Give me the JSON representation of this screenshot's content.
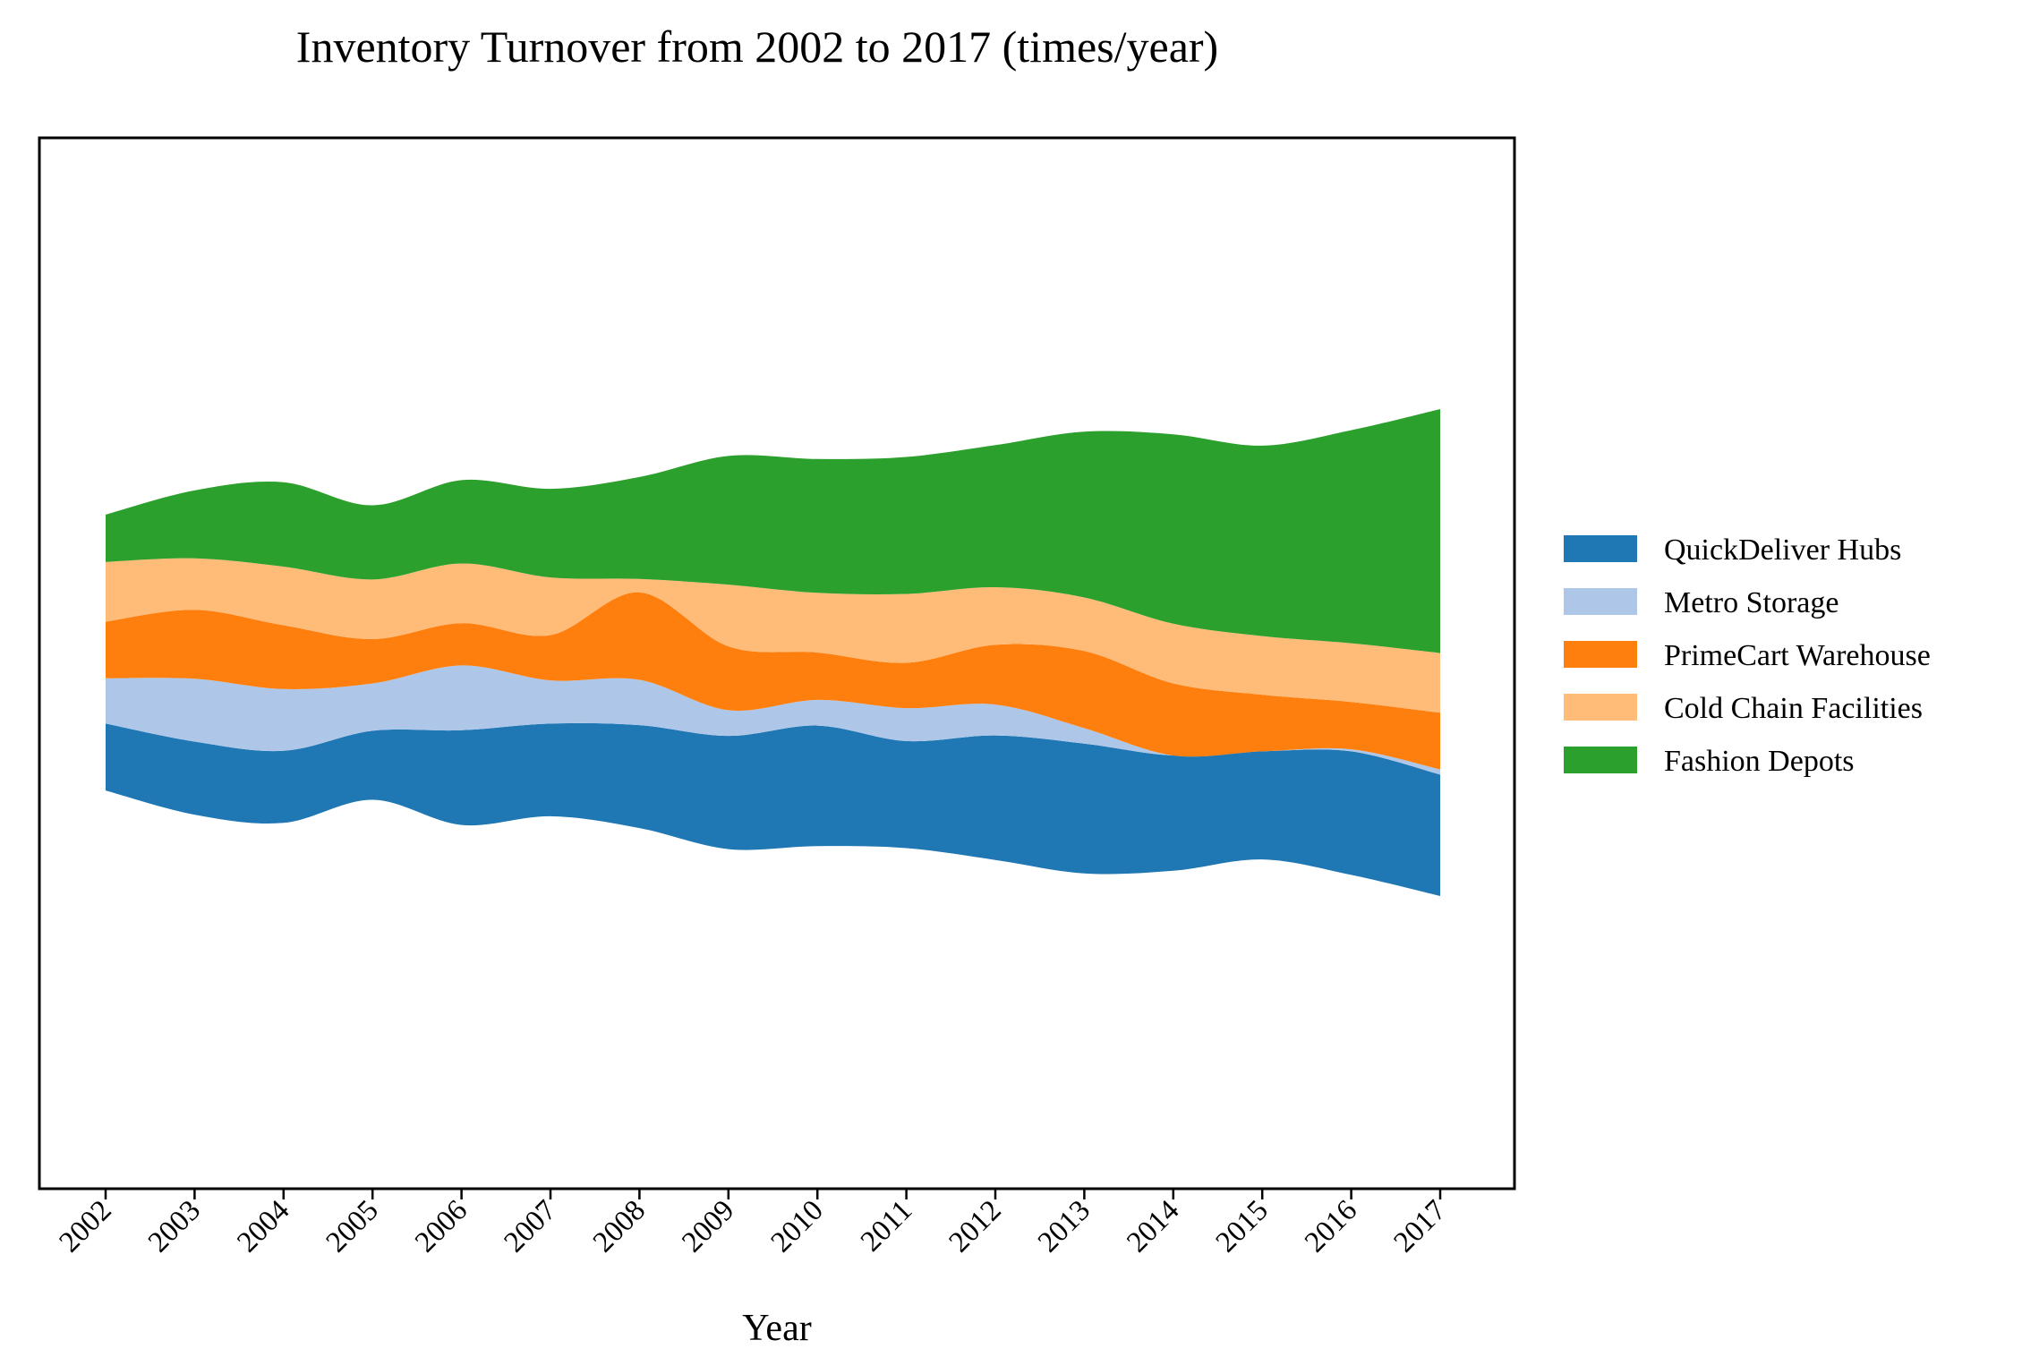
{
  "chart_data": {
    "type": "area",
    "subtype": "streamgraph",
    "title": "Inventory Turnover from 2002 to 2017 (times/year)",
    "xlabel": "Year",
    "ylabel": "",
    "categories": [
      "2002",
      "2003",
      "2004",
      "2005",
      "2006",
      "2007",
      "2008",
      "2009",
      "2010",
      "2011",
      "2012",
      "2013",
      "2014",
      "2015",
      "2016",
      "2017"
    ],
    "series": [
      {
        "name": "QuickDeliver Hubs",
        "color": "#1f77b4",
        "values": [
          6.5,
          7.1,
          7.0,
          6.7,
          9.2,
          9.0,
          10.0,
          11.0,
          11.7,
          10.4,
          12.1,
          12.6,
          11.2,
          10.5,
          12.0,
          11.8
        ]
      },
      {
        "name": "Metro Storage",
        "color": "#aec7e8",
        "values": [
          4.4,
          6.1,
          6.0,
          4.6,
          6.3,
          4.2,
          4.4,
          2.5,
          2.5,
          3.2,
          3.0,
          1.5,
          0.0,
          0.0,
          0.2,
          0.5
        ]
      },
      {
        "name": "PrimeCart Warehouse",
        "color": "#ff7f0e",
        "values": [
          5.5,
          6.7,
          6.2,
          4.3,
          4.1,
          4.4,
          8.5,
          6.2,
          4.6,
          4.4,
          5.8,
          7.5,
          7.0,
          5.5,
          4.6,
          5.5
        ]
      },
      {
        "name": "Cold Chain Facilities",
        "color": "#ffbb78",
        "values": [
          5.8,
          5.0,
          5.7,
          5.8,
          5.8,
          5.6,
          1.3,
          6.0,
          5.8,
          6.7,
          5.6,
          5.2,
          5.8,
          5.7,
          5.7,
          5.8
        ]
      },
      {
        "name": "Fashion Depots",
        "color": "#2ca02c",
        "values": [
          4.6,
          6.6,
          8.2,
          7.2,
          8.1,
          8.6,
          9.9,
          12.5,
          13.0,
          13.3,
          13.8,
          16.1,
          18.4,
          18.5,
          20.7,
          23.7
        ]
      }
    ],
    "legend_position": "right",
    "grid": false
  }
}
